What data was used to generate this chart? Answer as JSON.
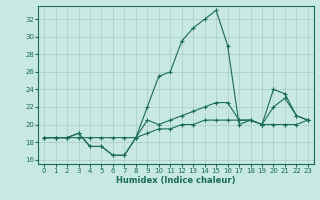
{
  "xlabel": "Humidex (Indice chaleur)",
  "xlim": [
    -0.5,
    23.5
  ],
  "ylim": [
    15.5,
    33.5
  ],
  "xticks": [
    0,
    1,
    2,
    3,
    4,
    5,
    6,
    7,
    8,
    9,
    10,
    11,
    12,
    13,
    14,
    15,
    16,
    17,
    18,
    19,
    20,
    21,
    22,
    23
  ],
  "yticks": [
    16,
    18,
    20,
    22,
    24,
    26,
    28,
    30,
    32
  ],
  "bg_color": "#c8e8e2",
  "line_color": "#1a6b5a",
  "grid_color": "#a8ccc8",
  "curves": [
    {
      "x": [
        0,
        1,
        2,
        3,
        4,
        5,
        6,
        7,
        8,
        9,
        10,
        11,
        12,
        13,
        14,
        15,
        16,
        17,
        18,
        19,
        20,
        21,
        22,
        23
      ],
      "y": [
        18.5,
        18.5,
        18.5,
        18.5,
        18.5,
        18.5,
        18.5,
        18.5,
        18.5,
        19.0,
        19.5,
        19.5,
        20.0,
        20.0,
        20.5,
        20.5,
        20.5,
        20.5,
        20.5,
        20.0,
        20.0,
        20.0,
        20.0,
        20.5
      ]
    },
    {
      "x": [
        0,
        1,
        2,
        3,
        4,
        5,
        6,
        7,
        8,
        9,
        10,
        11,
        12,
        13,
        14,
        15,
        16,
        17,
        18,
        19,
        20,
        21,
        22,
        23
      ],
      "y": [
        18.5,
        18.5,
        18.5,
        19.0,
        17.5,
        17.5,
        16.5,
        16.5,
        18.5,
        20.5,
        20.0,
        20.5,
        21.0,
        21.5,
        22.0,
        22.5,
        22.5,
        20.5,
        20.5,
        20.0,
        22.0,
        23.0,
        21.0,
        20.5
      ]
    },
    {
      "x": [
        0,
        1,
        2,
        3,
        4,
        5,
        6,
        7,
        8,
        9,
        10,
        11,
        12,
        13,
        14,
        15,
        16,
        17,
        18,
        19,
        20,
        21,
        22,
        23
      ],
      "y": [
        18.5,
        18.5,
        18.5,
        19.0,
        17.5,
        17.5,
        16.5,
        16.5,
        18.5,
        22.0,
        25.5,
        26.0,
        29.5,
        31.0,
        32.0,
        33.0,
        29.0,
        20.0,
        20.5,
        20.0,
        24.0,
        23.5,
        21.0,
        20.5
      ]
    }
  ]
}
